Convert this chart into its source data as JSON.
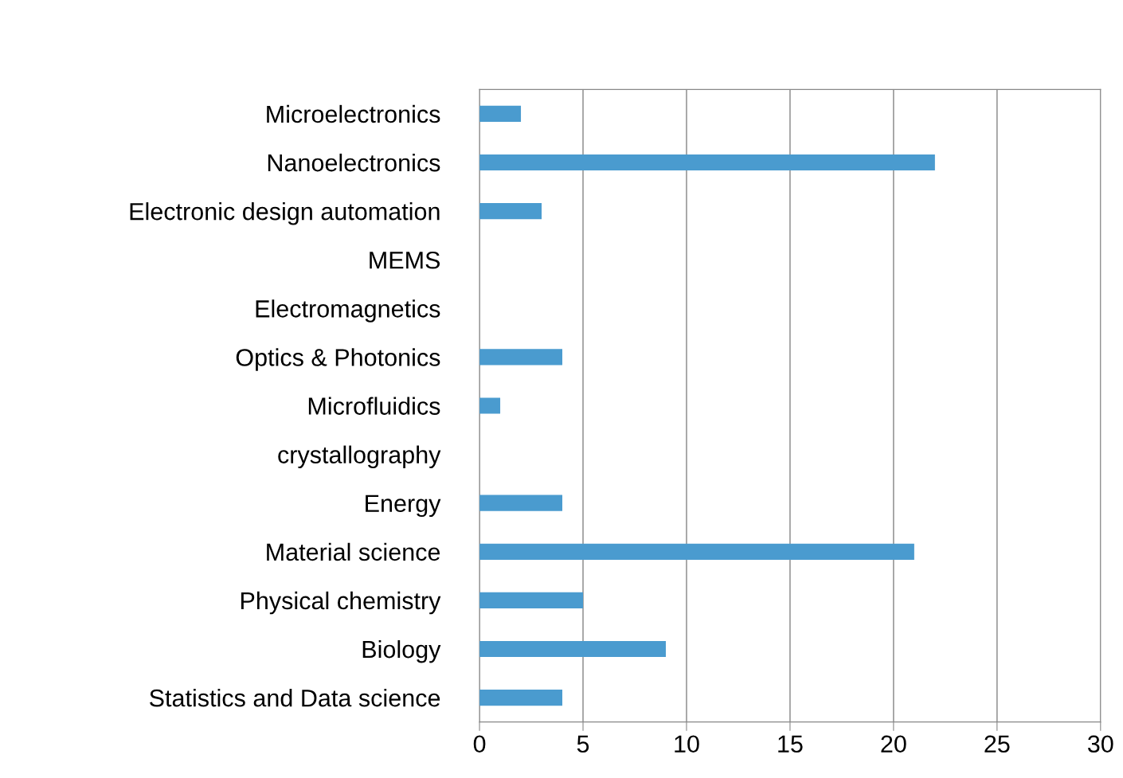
{
  "chart_data": {
    "type": "bar",
    "orientation": "horizontal",
    "categories": [
      "Microelectronics",
      "Nanoelectronics",
      "Electronic design automation",
      "MEMS",
      "Electromagnetics",
      "Optics & Photonics",
      "Microfluidics",
      "crystallography",
      "Energy",
      "Material science",
      "Physical chemistry",
      "Biology",
      "Statistics and Data science"
    ],
    "values": [
      2,
      22,
      3,
      0,
      0,
      4,
      1,
      0,
      4,
      21,
      5,
      9,
      4
    ],
    "color": "#4a9bcf",
    "xlim": [
      0,
      30
    ],
    "xticks": [
      0,
      5,
      10,
      15,
      20,
      25,
      30
    ],
    "grid": "x",
    "legend": false
  }
}
